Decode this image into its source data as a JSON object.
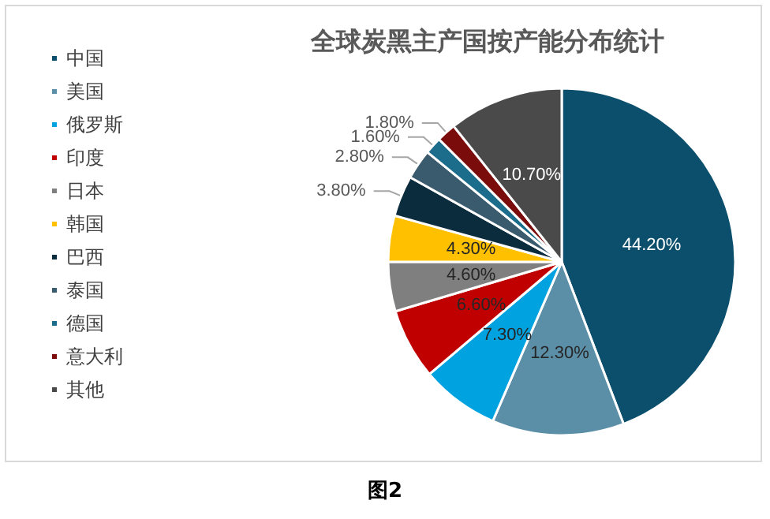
{
  "chart_data": {
    "type": "pie",
    "title": "全球炭黑主产国按产能分布统计",
    "categories": [
      "中国",
      "美国",
      "俄罗斯",
      "印度",
      "日本",
      "韩国",
      "巴西",
      "泰国",
      "德国",
      "意大利",
      "其他"
    ],
    "values": [
      44.2,
      12.3,
      7.3,
      6.6,
      4.6,
      4.3,
      3.8,
      2.8,
      1.6,
      1.8,
      10.7
    ],
    "value_labels": [
      "44.20%",
      "12.30%",
      "7.30%",
      "6.60%",
      "4.60%",
      "4.30%",
      "3.80%",
      "2.80%",
      "1.60%",
      "1.80%",
      "10.70%"
    ],
    "colors": [
      "#0b4f6c",
      "#5b8fa8",
      "#00a2e0",
      "#c00000",
      "#7f7f7f",
      "#ffc000",
      "#0a2c3d",
      "#3a5a6e",
      "#1c6c8c",
      "#7b0c0c",
      "#4a4a4a"
    ],
    "legend": "left",
    "annotations": [
      "图2"
    ]
  }
}
